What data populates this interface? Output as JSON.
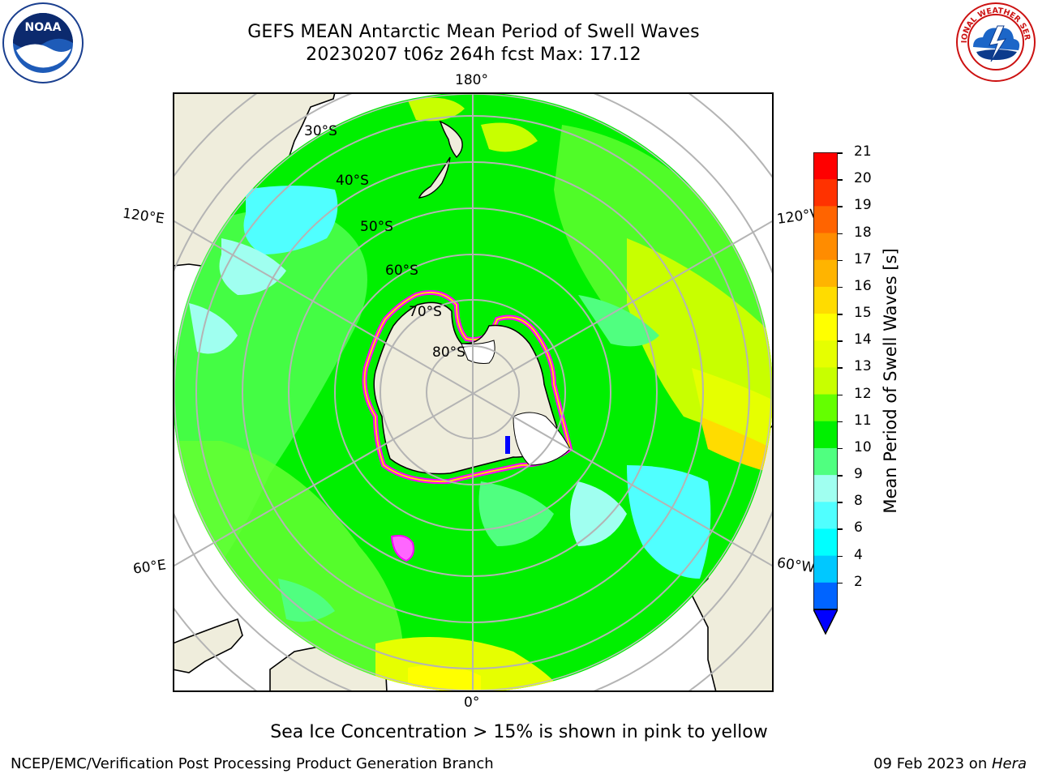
{
  "header": {
    "title_line1": "GEFS MEAN Antarctic Mean Period of Swell Waves",
    "title_line2": "20230207 t06z 264h fcst   Max: 17.12"
  },
  "logos": {
    "noaa_text": "NOAA",
    "noaa_ring_text": "NATIONAL OCEANIC AND ATMOSPHERIC ADMINISTRATION · U.S. DEPARTMENT OF COMMERCE",
    "nws_ring_text": "NATIONAL WEATHER SERVICE"
  },
  "map": {
    "longitude_labels": {
      "top": "180°",
      "bottom": "0°",
      "upper_left": "120°E",
      "upper_right": "120°W",
      "lower_left": "60°E",
      "lower_right": "60°W"
    },
    "latitude_labels": [
      "30°S",
      "40°S",
      "50°S",
      "60°S",
      "70°S",
      "80°S"
    ],
    "colors": {
      "land": "#efeddc",
      "grid": "#b4b4b4",
      "ocean_base": "#00f000",
      "ice": "#ff00ff"
    }
  },
  "colorbar": {
    "label": "Mean Period of Swell Waves [s]",
    "ticks": [
      "21",
      "20",
      "19",
      "18",
      "17",
      "16",
      "15",
      "14",
      "13",
      "12",
      "11",
      "10",
      "9",
      "8",
      "6",
      "4",
      "2"
    ],
    "colors": [
      "#ff0000",
      "#ff3200",
      "#ff6400",
      "#ff8c00",
      "#ffb400",
      "#ffdc00",
      "#ffff00",
      "#e6ff00",
      "#c8ff00",
      "#64ff00",
      "#00f000",
      "#50ff80",
      "#a0fff0",
      "#50ffff",
      "#00ffff",
      "#00c8ff",
      "#0064ff",
      "#0000ff"
    ]
  },
  "footer": {
    "note": "Sea Ice Concentration > 15% is shown in pink to yellow",
    "left": "NCEP/EMC/Verification Post Processing Product Generation Branch",
    "right_prefix": "09 Feb 2023 on ",
    "right_host": "Hera"
  }
}
